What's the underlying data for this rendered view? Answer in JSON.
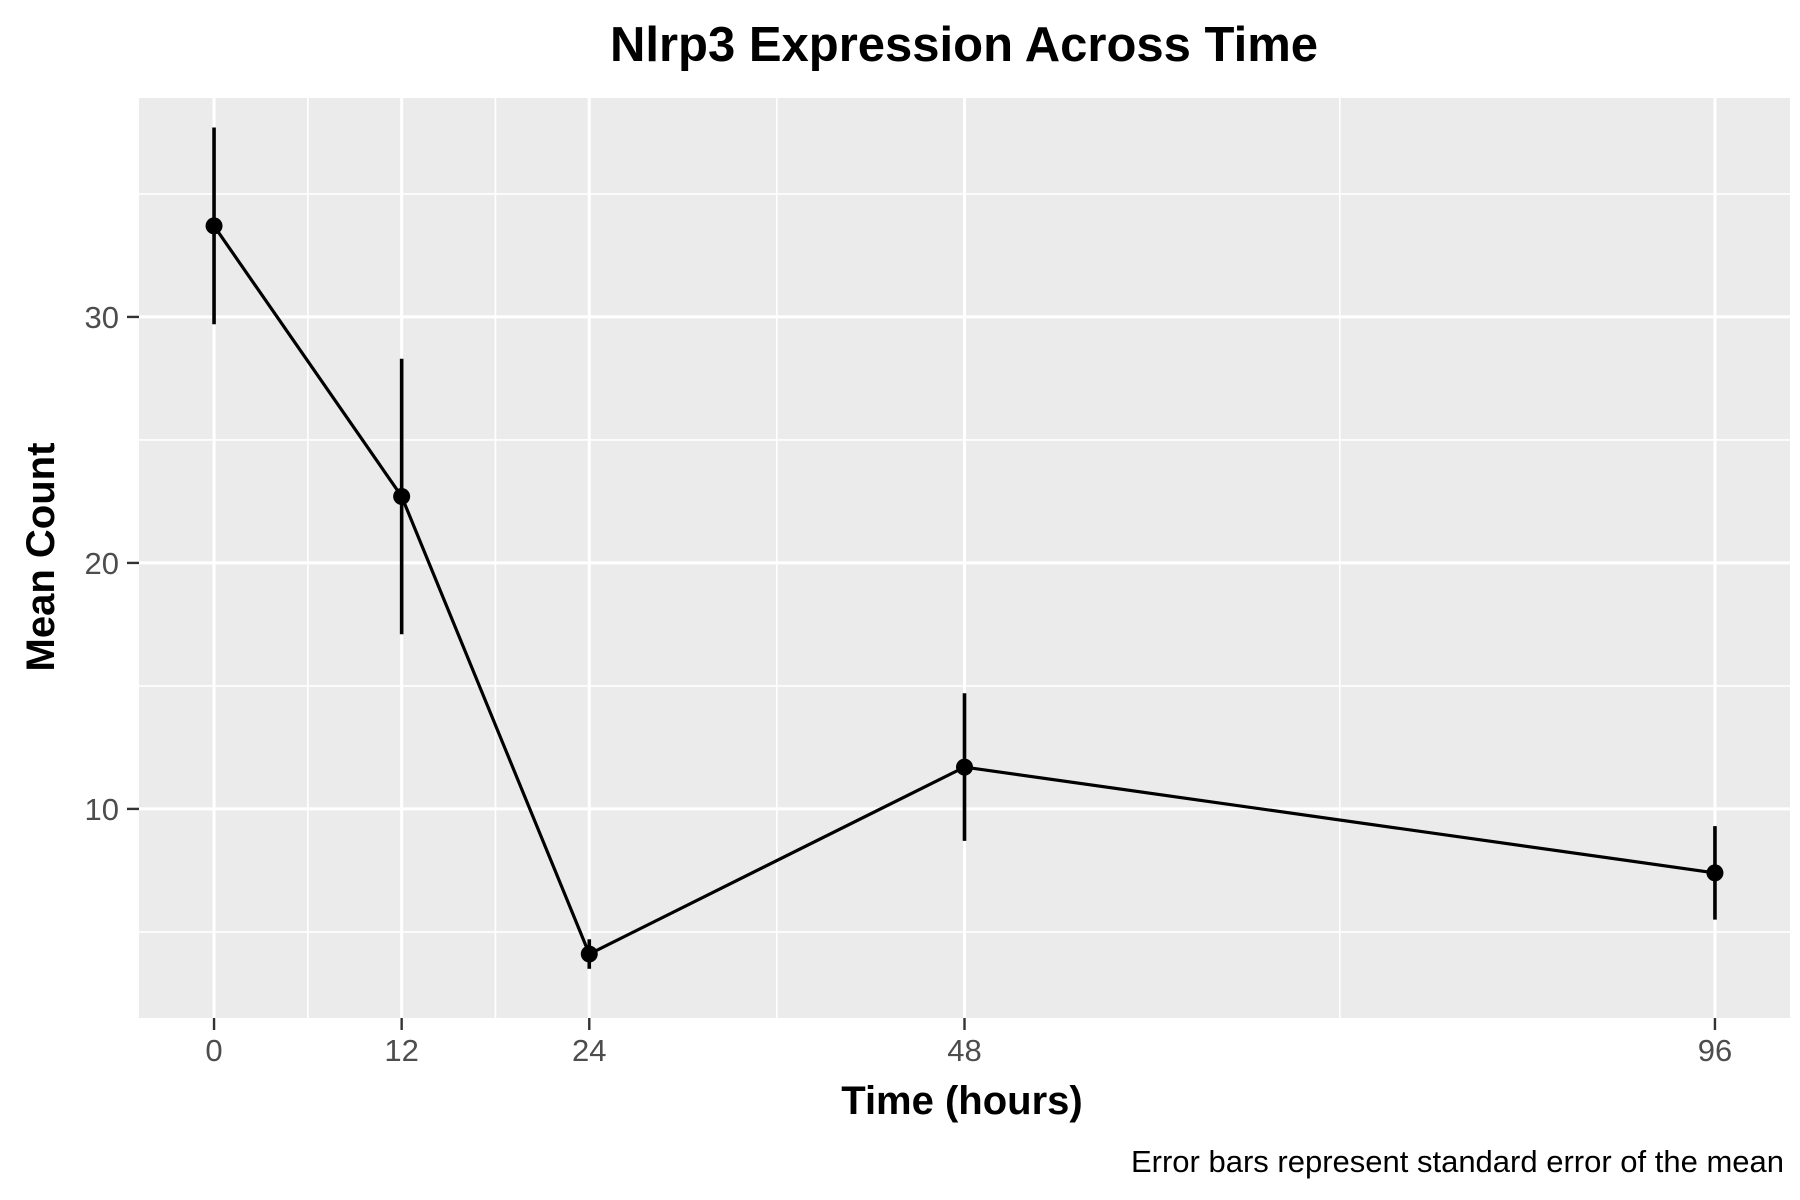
{
  "chart_data": {
    "type": "line",
    "title": "Nlrp3 Expression Across Time",
    "xlabel": "Time (hours)",
    "ylabel": "Mean Count",
    "caption": "Error bars represent standard error of the mean",
    "x": [
      0,
      12,
      24,
      48,
      96
    ],
    "x_tick_labels": [
      "0",
      "12",
      "24",
      "48",
      "96"
    ],
    "y_tick_labels": [
      "10",
      "20",
      "30"
    ],
    "y_ticks": [
      10,
      20,
      30
    ],
    "xlim": [
      -4.8,
      100.8
    ],
    "ylim": [
      1.5,
      38.9
    ],
    "series": [
      {
        "values": [
          33.7,
          22.7,
          4.1,
          11.7,
          7.4
        ],
        "error": [
          4.0,
          5.6,
          0.6,
          3.0,
          1.9
        ]
      }
    ],
    "grid": true,
    "panel_background": "#ebebeb",
    "grid_color": "#ffffff",
    "line_color": "#000000"
  }
}
